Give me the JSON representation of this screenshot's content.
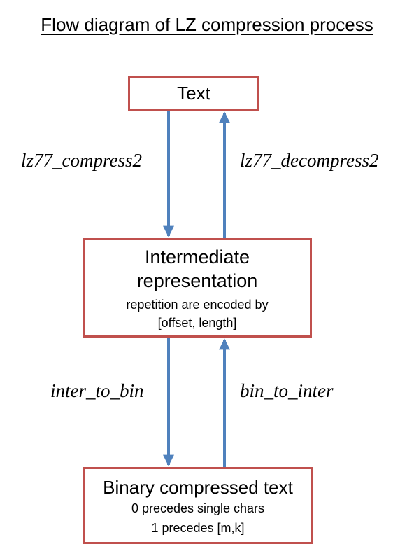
{
  "title": "Flow diagram of LZ compression process",
  "boxes": {
    "text": {
      "main": "Text"
    },
    "intermediate": {
      "main_line1": "Intermediate",
      "main_line2": "representation",
      "sub_line1": "repetition are encoded by",
      "sub_line2": "[offset, length]"
    },
    "binary": {
      "main": "Binary compressed text",
      "sub_line1": "0 precedes single chars",
      "sub_line2": "1 precedes [m,k]"
    }
  },
  "edges": {
    "compress": "lz77_compress2",
    "decompress": "lz77_decompress2",
    "to_bin": "inter_to_bin",
    "to_inter": "bin_to_inter"
  },
  "colors": {
    "box_border": "#c0504d",
    "arrow": "#4f81bd"
  }
}
